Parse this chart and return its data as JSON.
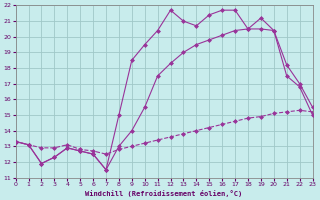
{
  "xlabel": "Windchill (Refroidissement éolien,°C)",
  "bg_color": "#c8ecec",
  "grid_color": "#a0c8c8",
  "line_color": "#993399",
  "xmin": 0,
  "xmax": 23,
  "ymin": 11,
  "ymax": 22,
  "line1_x": [
    0,
    1,
    2,
    3,
    4,
    5,
    6,
    7,
    8,
    9,
    10,
    11,
    12,
    13,
    14,
    15,
    16,
    17,
    18,
    19,
    20,
    21,
    22,
    23
  ],
  "line1_y": [
    13.3,
    13.1,
    11.9,
    12.3,
    12.9,
    12.7,
    12.5,
    11.5,
    15.0,
    18.5,
    19.5,
    20.4,
    21.7,
    21.0,
    20.7,
    21.4,
    21.7,
    21.7,
    20.5,
    21.2,
    20.4,
    17.5,
    16.8,
    15.0
  ],
  "line2_x": [
    0,
    1,
    2,
    3,
    4,
    5,
    6,
    7,
    8,
    9,
    10,
    11,
    12,
    13,
    14,
    15,
    16,
    17,
    18,
    19,
    20,
    21,
    22,
    23
  ],
  "line2_y": [
    13.3,
    13.1,
    11.9,
    12.3,
    12.9,
    12.7,
    12.5,
    11.5,
    13.0,
    14.0,
    15.5,
    17.5,
    18.3,
    19.0,
    19.5,
    19.8,
    20.1,
    20.4,
    20.5,
    20.5,
    20.4,
    18.2,
    17.0,
    15.5
  ],
  "line3_x": [
    0,
    1,
    2,
    3,
    4,
    5,
    6,
    7,
    8,
    9,
    10,
    11,
    12,
    13,
    14,
    15,
    16,
    17,
    18,
    19,
    20,
    21,
    22,
    23
  ],
  "line3_y": [
    13.3,
    13.1,
    12.9,
    12.9,
    13.1,
    12.8,
    12.7,
    12.5,
    12.8,
    13.0,
    13.2,
    13.4,
    13.6,
    13.8,
    14.0,
    14.2,
    14.4,
    14.6,
    14.8,
    14.9,
    15.1,
    15.2,
    15.3,
    15.2
  ]
}
